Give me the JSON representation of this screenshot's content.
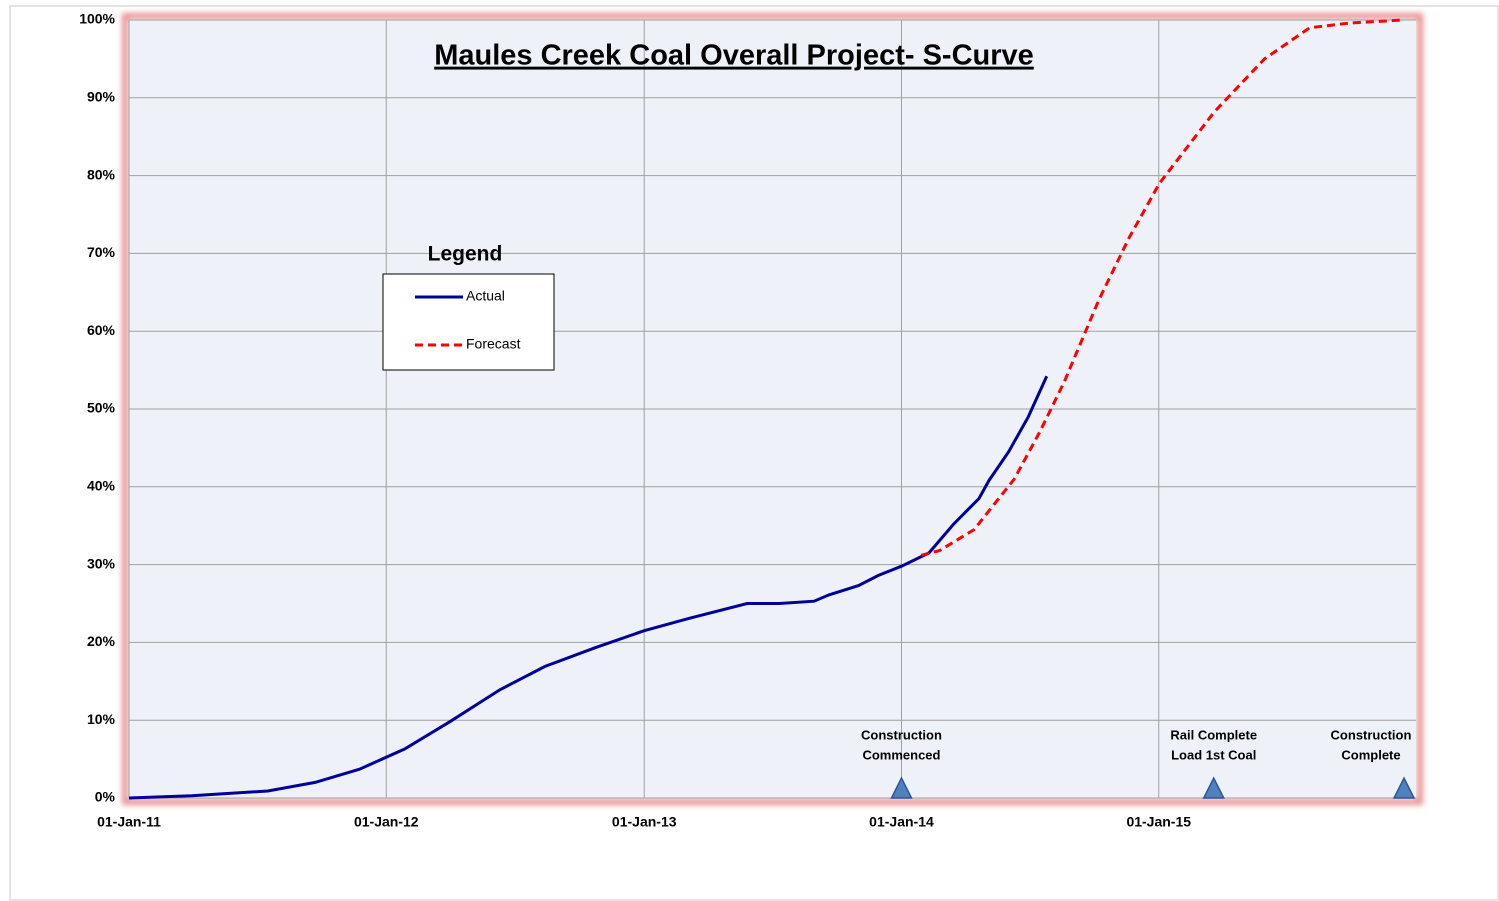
{
  "chart_data": {
    "type": "line",
    "title": "Maules Creek Coal Overall Project- S-Curve",
    "series": [
      {
        "name": "Actual",
        "color": "#000099",
        "dash": "solid",
        "x": [
          "2011-01-01",
          "2011-03-31",
          "2011-07-17",
          "2011-09-22",
          "2011-11-24",
          "2012-01-27",
          "2012-03-31",
          "2012-06-10",
          "2012-08-13",
          "2012-10-23",
          "2013-01-01",
          "2013-03-06",
          "2013-05-27",
          "2013-07-12",
          "2013-08-30",
          "2013-09-20",
          "2013-11-01",
          "2013-11-29",
          "2014-01-01",
          "2014-02-09",
          "2014-03-16",
          "2014-04-21",
          "2014-05-05",
          "2014-06-02",
          "2014-06-30",
          "2014-07-26"
        ],
        "values": [
          0,
          0.3,
          0.9,
          2.0,
          3.7,
          6.3,
          9.8,
          13.9,
          16.9,
          19.3,
          21.5,
          23.1,
          25.0,
          25.0,
          25.3,
          26.1,
          27.3,
          28.6,
          29.8,
          31.5,
          35.2,
          38.5,
          40.8,
          44.5,
          49.0,
          54.2
        ]
      },
      {
        "name": "Forecast",
        "color": "#ff0000",
        "dash": "dashed",
        "x": [
          "2014-01-29",
          "2014-02-24",
          "2014-04-14",
          "2014-06-10",
          "2014-07-16",
          "2014-08-20",
          "2014-10-08",
          "2014-11-20",
          "2015-01-02",
          "2015-03-21",
          "2015-05-31",
          "2015-08-03",
          "2015-09-28",
          "2015-12-14"
        ],
        "values": [
          31.2,
          31.8,
          34.5,
          41,
          47,
          53.5,
          64,
          72,
          79,
          88.2,
          95,
          99,
          99.6,
          100
        ]
      }
    ],
    "annotations": [
      {
        "x": "2014-01-01",
        "text": [
          "Construction",
          "Commenced"
        ]
      },
      {
        "x": "2015-03-20",
        "text": [
          "Rail Complete",
          "Load 1st Coal"
        ]
      },
      {
        "x": "2015-12-15",
        "text": [
          "Construction",
          "Complete"
        ]
      }
    ],
    "xlim": [
      "2011-01-01",
      "2016-01-01"
    ],
    "xticks": [
      {
        "value": "2011-01-01",
        "label": "01-Jan-11"
      },
      {
        "value": "2012-01-01",
        "label": "01-Jan-12"
      },
      {
        "value": "2013-01-01",
        "label": "01-Jan-13"
      },
      {
        "value": "2014-01-01",
        "label": "01-Jan-14"
      },
      {
        "value": "2015-01-01",
        "label": "01-Jan-15"
      }
    ],
    "ylim": [
      0,
      100
    ],
    "yticks": [
      {
        "value": 0,
        "label": "0%"
      },
      {
        "value": 10,
        "label": "10%"
      },
      {
        "value": 20,
        "label": "20%"
      },
      {
        "value": 30,
        "label": "30%"
      },
      {
        "value": 40,
        "label": "40%"
      },
      {
        "value": 50,
        "label": "50%"
      },
      {
        "value": 60,
        "label": "60%"
      },
      {
        "value": 70,
        "label": "70%"
      },
      {
        "value": 80,
        "label": "80%"
      },
      {
        "value": 90,
        "label": "90%"
      },
      {
        "value": 100,
        "label": "100%"
      }
    ],
    "grid": true,
    "legend": {
      "title": "Legend"
    },
    "marker_color": "#4f81bd"
  }
}
